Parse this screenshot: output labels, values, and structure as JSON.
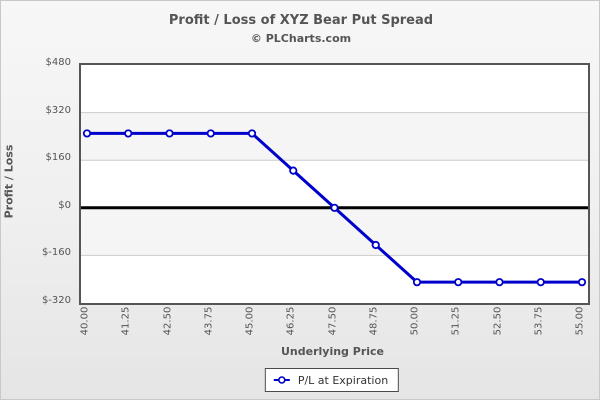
{
  "header": {
    "title": "Profit / Loss of XYZ Bear Put Spread",
    "subtitle": "© PLCharts.com"
  },
  "colors": {
    "line": "#0000cc",
    "marker_fill": "#ffffff",
    "zero_line": "#000000",
    "gridline": "#cccccc",
    "band_even": "#ffffff",
    "band_odd": "#f5f5f5",
    "text": "#555555",
    "plot_border": "#555555"
  },
  "chart_data": {
    "type": "line",
    "title": "Profit / Loss of XYZ Bear Put Spread",
    "subtitle": "© PLCharts.com",
    "xlabel": "Underlying Price",
    "ylabel": "Profit / Loss",
    "x": [
      40.0,
      41.25,
      42.5,
      43.75,
      45.0,
      46.25,
      47.5,
      48.75,
      50.0,
      51.25,
      52.5,
      53.75,
      55.0
    ],
    "x_tick_labels": [
      "40.00",
      "41.25",
      "42.50",
      "43.75",
      "45.00",
      "46.25",
      "47.50",
      "48.75",
      "50.00",
      "51.25",
      "52.50",
      "53.75",
      "55.00"
    ],
    "series": [
      {
        "name": "P/L at Expiration",
        "values": [
          250,
          250,
          250,
          250,
          250,
          125,
          0,
          -125,
          -250,
          -250,
          -250,
          -250,
          -250
        ],
        "color": "#0000cc",
        "marker": "open-circle"
      }
    ],
    "y_ticks": [
      480,
      320,
      160,
      0,
      -160,
      -320
    ],
    "y_tick_labels": [
      "$480",
      "$320",
      "$160",
      "$0",
      "$-160",
      "$-320"
    ],
    "ylim": [
      -320,
      480
    ],
    "zero_line": true,
    "grid": "horizontal",
    "band_alternating": true,
    "legend_position": "bottom"
  },
  "legend": {
    "label": "P/L at Expiration"
  }
}
